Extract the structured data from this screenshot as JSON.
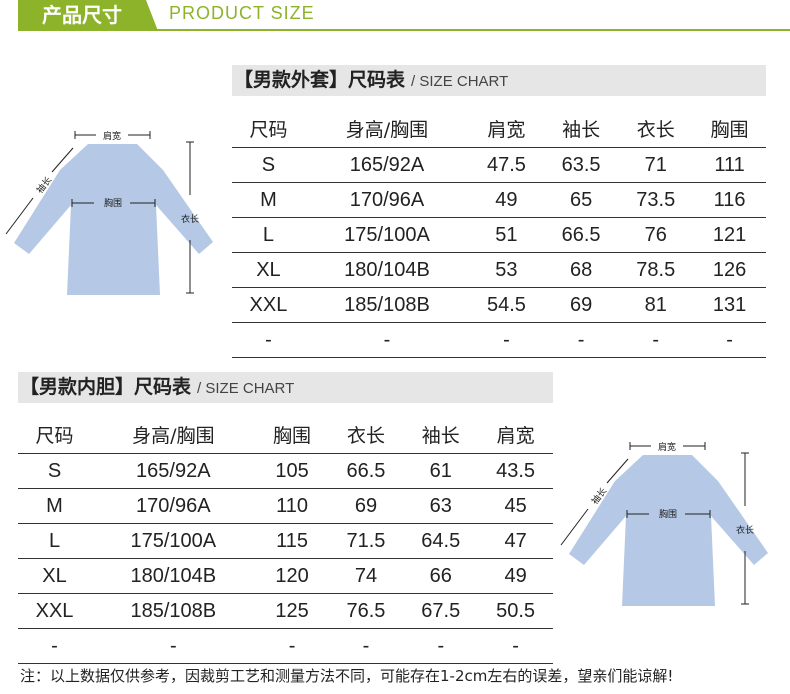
{
  "banner": {
    "title": "产品尺寸",
    "subtitle": "PRODUCT SIZE",
    "accent": "#8db32a"
  },
  "coat": {
    "title_bracket": "【男款外套】",
    "title": "尺码表",
    "subtitle": "/ SIZE CHART",
    "headers": [
      "尺码",
      "身高/胸围",
      "肩宽",
      "袖长",
      "衣长",
      "胸围"
    ],
    "rows": [
      [
        "S",
        "165/92A",
        "47.5",
        "63.5",
        "71",
        "111"
      ],
      [
        "M",
        "170/96A",
        "49",
        "65",
        "73.5",
        "116"
      ],
      [
        "L",
        "175/100A",
        "51",
        "66.5",
        "76",
        "121"
      ],
      [
        "XL",
        "180/104B",
        "53",
        "68",
        "78.5",
        "126"
      ],
      [
        "XXL",
        "185/108B",
        "54.5",
        "69",
        "81",
        "131"
      ],
      [
        "-",
        "-",
        "-",
        "-",
        "-",
        "-"
      ]
    ]
  },
  "liner": {
    "title_bracket": "【男款内胆】",
    "title": "尺码表",
    "subtitle": "/ SIZE CHART",
    "headers": [
      "尺码",
      "身高/胸围",
      "胸围",
      "衣长",
      "袖长",
      "肩宽"
    ],
    "rows": [
      [
        "S",
        "165/92A",
        "105",
        "66.5",
        "61",
        "43.5"
      ],
      [
        "M",
        "170/96A",
        "110",
        "69",
        "63",
        "45"
      ],
      [
        "L",
        "175/100A",
        "115",
        "71.5",
        "64.5",
        "47"
      ],
      [
        "XL",
        "180/104B",
        "120",
        "74",
        "66",
        "49"
      ],
      [
        "XXL",
        "185/108B",
        "125",
        "76.5",
        "67.5",
        "50.5"
      ],
      [
        "-",
        "-",
        "-",
        "-",
        "-",
        "-"
      ]
    ]
  },
  "diagram": {
    "shoulder": "肩宽",
    "sleeve": "袖长",
    "chest": "胸围",
    "length": "衣长",
    "shirt_color": "#b5c8e5"
  },
  "note": "注：以上数据仅供参考，因裁剪工艺和测量方法不同，可能存在1-2cm左右的误差，望亲们能谅解!"
}
